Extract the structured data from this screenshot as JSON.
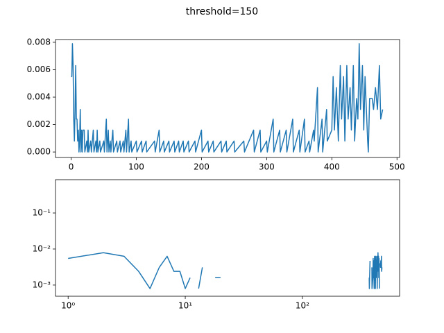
{
  "title": "threshold=150",
  "chart_data": [
    {
      "type": "line",
      "xlim": [
        -24,
        504
      ],
      "ylim": [
        -0.0004,
        0.0082
      ],
      "xticks": [
        0,
        100,
        200,
        300,
        400,
        500
      ],
      "yticks": [
        {
          "value": 0,
          "label": "0.000"
        },
        {
          "value": 0.002,
          "label": "0.002"
        },
        {
          "value": 0.004,
          "label": "0.004"
        },
        {
          "value": 0.006,
          "label": "0.006"
        },
        {
          "value": 0.008,
          "label": "0.008"
        }
      ],
      "series": [
        {
          "color": "#1f77b4",
          "x": [
            0,
            1,
            2,
            3,
            4,
            5,
            6,
            7,
            8,
            9,
            10,
            11,
            12,
            13,
            14,
            15,
            16,
            17,
            18,
            20,
            21,
            24,
            25,
            26,
            27,
            30,
            31,
            34,
            35,
            38,
            39,
            40,
            41,
            44,
            45,
            50,
            51,
            54,
            55,
            57,
            58,
            60,
            61,
            64,
            65,
            70,
            71,
            75,
            76,
            80,
            81,
            84,
            85,
            88,
            89,
            92,
            93,
            100,
            101,
            108,
            109,
            115,
            116,
            128,
            129,
            135,
            136,
            142,
            143,
            150,
            151,
            158,
            159,
            165,
            166,
            172,
            173,
            180,
            181,
            190,
            191,
            200,
            201,
            210,
            211,
            218,
            219,
            230,
            231,
            238,
            239,
            250,
            251,
            265,
            266,
            280,
            281,
            290,
            291,
            300,
            301,
            310,
            311,
            320,
            321,
            330,
            331,
            340,
            341,
            350,
            351,
            358,
            359,
            365,
            366,
            372,
            373,
            378,
            379,
            385,
            386,
            392,
            393,
            400,
            402,
            404,
            407,
            410,
            413,
            415,
            418,
            420,
            423,
            425,
            428,
            430,
            433,
            435,
            438,
            440,
            442,
            444,
            447,
            449,
            451,
            453,
            455,
            456,
            458,
            462,
            464,
            467,
            470,
            473,
            475,
            478
          ],
          "values": [
            0.0055,
            0.0055,
            0.0079,
            0.0063,
            0.0024,
            0.0008,
            0.0031,
            0.0063,
            0.0024,
            0.0024,
            0.0008,
            0.0016,
            0,
            0.0008,
            0.0031,
            0,
            0.0016,
            0,
            0.0016,
            0.0016,
            0,
            0.0008,
            0,
            0.0016,
            0,
            0.0008,
            0,
            0.0016,
            0,
            0.0008,
            0,
            0.0016,
            0,
            0.0008,
            0,
            0.0008,
            0,
            0.0024,
            0,
            0.0016,
            0,
            0.0008,
            0,
            0.0016,
            0,
            0.0008,
            0,
            0.0008,
            0,
            0.0008,
            0,
            0.0016,
            0,
            0.0024,
            0,
            0.0008,
            0,
            0.0008,
            0,
            0.0008,
            0,
            0.0008,
            0,
            0.0008,
            0,
            0.0016,
            0,
            0.0008,
            0,
            0.0008,
            0,
            0.0008,
            0,
            0.0008,
            0,
            0.0008,
            0,
            0.0008,
            0,
            0.0008,
            0,
            0.0016,
            0,
            0.0008,
            0,
            0.0008,
            0,
            0.0008,
            0,
            0.0008,
            0,
            0.0008,
            0,
            0.0008,
            0,
            0.0016,
            0,
            0.0016,
            0,
            0.0008,
            0,
            0.0024,
            0,
            0.0016,
            0,
            0.0016,
            0,
            0.0024,
            0,
            0.0016,
            0,
            0.0024,
            0,
            0.0008,
            0,
            0.0016,
            0.0008,
            0.0047,
            0,
            0.0024,
            0,
            0.0031,
            0.0008,
            0.0016,
            0.0055,
            0.0016,
            0.0047,
            0.0008,
            0.0063,
            0.0024,
            0.0055,
            0.0008,
            0.0063,
            0.0024,
            0.0047,
            0.0016,
            0.0063,
            0.0008,
            0.0039,
            0.0024,
            0.0079,
            0.0031,
            0.0063,
            0.0016,
            0.0055,
            0.0031,
            0.0008,
            0,
            0.0039,
            0.0039,
            0.0031,
            0.0047,
            0.0031,
            0.0063,
            0.0024,
            0.0031
          ]
        }
      ]
    },
    {
      "type": "line",
      "xscale": "log",
      "yscale": "log",
      "xlim": [
        0.78,
        676
      ],
      "ylim": [
        0.00049,
        0.84
      ],
      "xticks": [
        {
          "value": 1,
          "label": "10⁰"
        },
        {
          "value": 10,
          "label": "10¹"
        },
        {
          "value": 100,
          "label": "10²"
        }
      ],
      "yticks": [
        {
          "value": 0.001,
          "label": "10⁻³"
        },
        {
          "value": 0.01,
          "label": "10⁻²"
        },
        {
          "value": 0.1,
          "label": "10⁻¹"
        }
      ],
      "series": [
        {
          "color": "#1f77b4",
          "x": [
            1,
            2,
            3,
            4,
            5,
            6,
            7,
            8,
            9,
            10,
            11,
            12,
            13,
            14,
            15,
            16,
            17,
            18,
            20,
            21,
            24,
            25,
            26,
            27,
            30,
            31,
            34,
            35,
            38,
            39,
            40,
            41,
            44,
            45,
            50,
            51,
            54,
            55,
            57,
            58,
            60,
            61,
            64,
            65,
            70,
            71,
            75,
            76,
            80,
            81,
            84,
            85,
            88,
            89,
            92,
            93,
            100,
            101,
            108,
            109,
            115,
            116,
            128,
            129,
            135,
            136,
            142,
            143,
            150,
            151,
            158,
            159,
            165,
            166,
            172,
            173,
            180,
            181,
            190,
            191,
            200,
            201,
            210,
            211,
            218,
            219,
            230,
            231,
            238,
            239,
            250,
            251,
            265,
            266,
            280,
            281,
            290,
            291,
            300,
            301,
            310,
            311,
            320,
            321,
            330,
            331,
            340,
            341,
            350,
            351,
            358,
            359,
            365,
            366,
            372,
            373,
            378,
            379,
            385,
            386,
            392,
            393,
            400,
            402,
            404,
            407,
            410,
            413,
            415,
            418,
            420,
            423,
            425,
            428,
            430,
            433,
            435,
            438,
            440,
            442,
            444,
            447,
            449,
            451,
            453,
            455,
            456,
            458,
            462,
            464,
            467,
            470,
            473,
            475,
            478
          ],
          "values": [
            0.0055,
            0.0079,
            0.0063,
            0.0024,
            0.0008,
            0.0031,
            0.0063,
            0.0024,
            0.0024,
            0.0008,
            0.0016,
            null,
            0.0008,
            0.0031,
            null,
            0.0016,
            null,
            0.0016,
            0.0016,
            null,
            0.0008,
            null,
            0.0016,
            null,
            0.0008,
            null,
            0.0016,
            null,
            0.0008,
            null,
            0.0016,
            null,
            0.0008,
            null,
            0.0008,
            null,
            0.0024,
            null,
            0.0016,
            null,
            0.0008,
            null,
            0.0016,
            null,
            0.0008,
            null,
            0.0008,
            null,
            0.0008,
            null,
            0.0016,
            null,
            0.0024,
            null,
            0.0008,
            null,
            0.0008,
            null,
            0.0008,
            null,
            0.0008,
            null,
            0.0008,
            null,
            0.0016,
            null,
            0.0008,
            null,
            0.0008,
            null,
            0.0008,
            null,
            0.0008,
            null,
            0.0008,
            null,
            0.0008,
            null,
            0.0008,
            null,
            0.0016,
            null,
            0.0008,
            null,
            0.0008,
            null,
            0.0008,
            null,
            0.0008,
            null,
            0.0008,
            null,
            0.0008,
            null,
            0.0016,
            null,
            0.0016,
            null,
            0.0008,
            null,
            0.0024,
            null,
            0.0016,
            null,
            0.0016,
            null,
            0.0024,
            null,
            0.0016,
            null,
            0.0024,
            null,
            0.0008,
            null,
            0.0016,
            0.0008,
            0.0047,
            null,
            0.0024,
            null,
            0.0031,
            0.0008,
            0.0016,
            0.0055,
            0.0016,
            0.0047,
            0.0008,
            0.0063,
            0.0024,
            0.0055,
            0.0008,
            0.0063,
            0.0024,
            0.0047,
            0.0016,
            0.0063,
            0.0008,
            0.0039,
            0.0024,
            0.0079,
            0.0031,
            0.0063,
            0.0016,
            0.0055,
            0.0031,
            0.0008,
            null,
            0.0039,
            0.0039,
            0.0031,
            0.0047,
            0.0031,
            0.0063,
            0.0024,
            0.0031
          ]
        }
      ]
    }
  ]
}
